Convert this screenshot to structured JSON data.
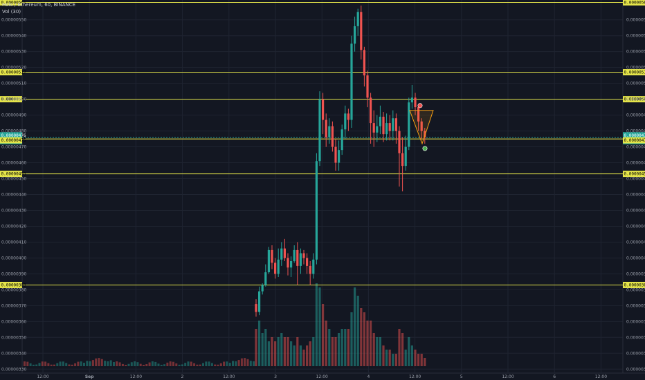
{
  "header": {
    "symbol_line": "Holo / Ethereum, 60, BINANCE",
    "volume_label": "Vol (30)"
  },
  "colors": {
    "background": "#131722",
    "grid": "#1f2431",
    "up": "#26a69a",
    "down": "#ef5350",
    "level_line": "#e5e54a",
    "triangle": "#f39c12"
  },
  "chart_data": {
    "type": "candlestick",
    "title": "",
    "ylim": [
      3.275e-06,
      5.625e-06
    ],
    "y_ticks": [
      "0.00000330",
      "0.00000340",
      "0.00000350",
      "0.00000360",
      "0.00000370",
      "0.00000380",
      "0.00000390",
      "0.00000400",
      "0.00000410",
      "0.00000420",
      "0.00000430",
      "0.00000440",
      "0.00000450",
      "0.00000460",
      "0.00000470",
      "0.00000480",
      "0.00000490",
      "0.00000500",
      "0.00000510",
      "0.00000520",
      "0.00000530",
      "0.00000540",
      "0.00000550"
    ],
    "x_ticks": [
      "12:00",
      "Sep",
      "12:00",
      "2",
      "12:00",
      "3",
      "12:00",
      "4",
      "12:00",
      "5",
      "12:00",
      "6",
      "12:00"
    ],
    "levels": [
      "0.00000561",
      "0.00000517",
      "0.00000500",
      "0.00000476",
      "0.00000475",
      "0.00000453",
      "0.00000383"
    ],
    "current_price": "0.00000476",
    "countdown": "57:41",
    "candles": [
      [
        3.71,
        3.66,
        3.74,
        3.63,
        0.45
      ],
      [
        3.66,
        3.79,
        3.82,
        3.64,
        0.55
      ],
      [
        3.79,
        3.83,
        3.84,
        3.77,
        0.4
      ],
      [
        3.83,
        3.91,
        3.96,
        3.82,
        0.45
      ],
      [
        3.91,
        4.05,
        4.07,
        3.9,
        0.3
      ],
      [
        4.05,
        3.97,
        4.08,
        3.93,
        0.35
      ],
      [
        3.97,
        3.9,
        4.0,
        3.87,
        0.3
      ],
      [
        3.9,
        3.99,
        4.06,
        3.88,
        0.35
      ],
      [
        3.99,
        4.06,
        4.1,
        3.95,
        0.4
      ],
      [
        4.06,
        4.0,
        4.12,
        3.98,
        0.35
      ],
      [
        4.0,
        3.94,
        4.03,
        3.89,
        0.35
      ],
      [
        3.94,
        3.98,
        4.01,
        3.88,
        0.3
      ],
      [
        3.98,
        4.05,
        4.08,
        3.97,
        0.25
      ],
      [
        4.05,
        3.95,
        4.1,
        3.83,
        0.35
      ],
      [
        3.95,
        4.03,
        4.06,
        3.9,
        0.25
      ],
      [
        4.03,
        4.0,
        4.05,
        3.96,
        0.2
      ],
      [
        4.0,
        3.95,
        4.03,
        3.9,
        0.25
      ],
      [
        3.95,
        3.9,
        3.98,
        3.83,
        0.3
      ],
      [
        3.9,
        3.99,
        4.03,
        3.87,
        0.35
      ],
      [
        3.99,
        4.61,
        4.66,
        3.96,
        1.0
      ],
      [
        4.61,
        5.0,
        5.05,
        4.58,
        0.95
      ],
      [
        5.0,
        4.87,
        5.04,
        4.78,
        0.75
      ],
      [
        4.87,
        4.76,
        4.91,
        4.7,
        0.55
      ],
      [
        4.76,
        4.83,
        4.88,
        4.72,
        0.45
      ],
      [
        4.83,
        4.7,
        4.86,
        4.67,
        0.35
      ],
      [
        4.7,
        4.6,
        4.75,
        4.55,
        0.35
      ],
      [
        4.6,
        4.68,
        4.74,
        4.55,
        0.4
      ],
      [
        4.68,
        4.81,
        4.84,
        4.65,
        0.45
      ],
      [
        4.81,
        4.91,
        4.96,
        4.75,
        0.45
      ],
      [
        4.91,
        4.87,
        4.94,
        4.8,
        0.45
      ],
      [
        4.87,
        5.35,
        5.4,
        4.82,
        0.65
      ],
      [
        5.35,
        5.46,
        5.52,
        5.3,
        0.95
      ],
      [
        5.46,
        5.55,
        5.57,
        5.4,
        0.85
      ],
      [
        5.55,
        5.31,
        5.59,
        5.25,
        0.7
      ],
      [
        5.31,
        5.15,
        5.33,
        5.08,
        0.65
      ],
      [
        5.15,
        5.01,
        5.18,
        4.95,
        0.55
      ],
      [
        5.01,
        4.85,
        5.04,
        4.72,
        0.55
      ],
      [
        4.85,
        4.79,
        4.93,
        4.7,
        0.4
      ],
      [
        4.79,
        4.83,
        4.9,
        4.73,
        0.35
      ],
      [
        4.83,
        4.89,
        4.96,
        4.78,
        0.35
      ],
      [
        4.89,
        4.78,
        4.92,
        4.73,
        0.25
      ],
      [
        4.78,
        4.85,
        4.91,
        4.74,
        0.2
      ],
      [
        4.85,
        4.8,
        4.9,
        4.74,
        0.2
      ],
      [
        4.8,
        4.88,
        4.93,
        4.74,
        0.15
      ],
      [
        4.88,
        4.8,
        4.91,
        4.72,
        0.15
      ],
      [
        4.8,
        4.66,
        4.83,
        4.45,
        0.45
      ],
      [
        4.66,
        4.58,
        4.76,
        4.42,
        0.4
      ],
      [
        4.58,
        4.7,
        4.77,
        4.55,
        0.2
      ],
      [
        4.7,
        4.98,
        5.01,
        4.68,
        0.35
      ],
      [
        4.98,
        5.01,
        5.09,
        4.94,
        0.25
      ],
      [
        5.01,
        4.95,
        5.04,
        4.9,
        0.2
      ],
      [
        4.95,
        4.86,
        4.97,
        4.8,
        0.15
      ],
      [
        4.86,
        4.8,
        4.88,
        4.75,
        0.15
      ],
      [
        4.8,
        4.76,
        4.82,
        4.72,
        0.1
      ]
    ]
  }
}
